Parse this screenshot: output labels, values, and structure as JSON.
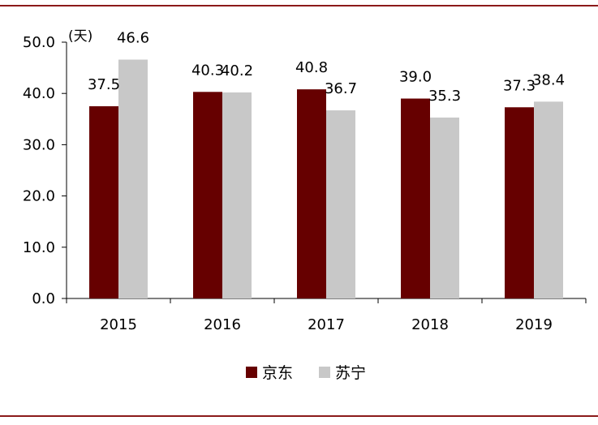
{
  "chart_data": {
    "type": "bar",
    "unit_label": "(天)",
    "categories": [
      "2015",
      "2016",
      "2017",
      "2018",
      "2019"
    ],
    "series": [
      {
        "name": "京东",
        "color": "#660000",
        "values": [
          37.5,
          40.3,
          40.8,
          39.0,
          37.3
        ],
        "labels": [
          "37.5",
          "40.3",
          "40.8",
          "39.0",
          "37.3"
        ]
      },
      {
        "name": "苏宁",
        "color": "#c8c8c8",
        "values": [
          46.6,
          40.2,
          36.7,
          35.3,
          38.4
        ],
        "labels": [
          "46.6",
          "40.2",
          "36.7",
          "35.3",
          "38.4"
        ]
      }
    ],
    "y_ticks": [
      "0.0",
      "10.0",
      "20.0",
      "30.0",
      "40.0",
      "50.0"
    ],
    "ylim": [
      0,
      50
    ],
    "grid": false,
    "legend_position": "bottom-center",
    "frame_color": "#8b1a1a"
  }
}
